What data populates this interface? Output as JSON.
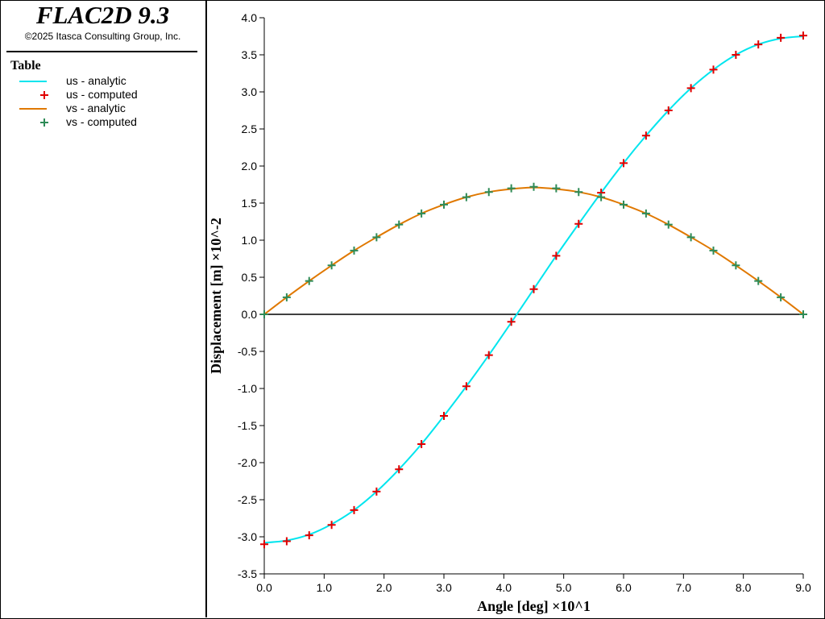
{
  "app": {
    "title": "FLAC2D 9.3",
    "copyright": "©2025 Itasca Consulting Group, Inc."
  },
  "legend": {
    "heading": "Table",
    "entries": [
      {
        "label": "us - analytic",
        "kind": "line",
        "color": "#00e5ee"
      },
      {
        "label": "us - computed",
        "kind": "plus",
        "color": "#e00000"
      },
      {
        "label": "vs - analytic",
        "kind": "line",
        "color": "#e07800"
      },
      {
        "label": "vs - computed",
        "kind": "plus",
        "color": "#2e8b57"
      }
    ]
  },
  "chart_data": {
    "type": "line",
    "xlabel": "Angle [deg] ×10^1",
    "ylabel": "Displacement [m] ×10^-2",
    "xlim": [
      0,
      9
    ],
    "ylim": [
      -3.5,
      4.0
    ],
    "x_ticks": [
      "0.0",
      "1.0",
      "2.0",
      "3.0",
      "4.0",
      "5.0",
      "6.0",
      "7.0",
      "8.0",
      "9.0"
    ],
    "y_ticks": [
      "4.0",
      "3.5",
      "3.0",
      "2.5",
      "2.0",
      "1.5",
      "1.0",
      "0.5",
      "0.0",
      "-0.5",
      "-1.0",
      "-1.5",
      "-2.0",
      "-2.5",
      "-3.0",
      "-3.5"
    ],
    "zero_line": true,
    "grid": false,
    "series": [
      {
        "name": "us - analytic",
        "style": "line",
        "color": "#00e5ee",
        "x": [
          0.0,
          0.375,
          0.75,
          1.125,
          1.5,
          1.875,
          2.25,
          2.625,
          3.0,
          3.375,
          3.75,
          4.125,
          4.5,
          4.875,
          5.25,
          5.625,
          6.0,
          6.375,
          6.75,
          7.125,
          7.5,
          7.875,
          8.25,
          8.625,
          9.0
        ],
        "y": [
          -3.08,
          -3.05,
          -2.97,
          -2.83,
          -2.64,
          -2.39,
          -2.09,
          -1.75,
          -1.37,
          -0.97,
          -0.55,
          -0.11,
          0.34,
          0.79,
          1.22,
          1.64,
          2.04,
          2.41,
          2.75,
          3.05,
          3.3,
          3.5,
          3.64,
          3.72,
          3.75
        ]
      },
      {
        "name": "us - computed",
        "style": "plus",
        "color": "#e00000",
        "x": [
          0.0,
          0.375,
          0.75,
          1.125,
          1.5,
          1.875,
          2.25,
          2.625,
          3.0,
          3.375,
          3.75,
          4.125,
          4.5,
          4.875,
          5.25,
          5.625,
          6.0,
          6.375,
          6.75,
          7.125,
          7.5,
          7.875,
          8.25,
          8.625,
          9.0
        ],
        "y": [
          -3.1,
          -3.06,
          -2.98,
          -2.84,
          -2.64,
          -2.39,
          -2.09,
          -1.75,
          -1.37,
          -0.97,
          -0.55,
          -0.1,
          0.34,
          0.79,
          1.22,
          1.64,
          2.04,
          2.41,
          2.75,
          3.05,
          3.3,
          3.5,
          3.64,
          3.73,
          3.76
        ]
      },
      {
        "name": "vs - analytic",
        "style": "line",
        "color": "#e07800",
        "x": [
          0.0,
          0.375,
          0.75,
          1.125,
          1.5,
          1.875,
          2.25,
          2.625,
          3.0,
          3.375,
          3.75,
          4.125,
          4.5,
          4.875,
          5.25,
          5.625,
          6.0,
          6.375,
          6.75,
          7.125,
          7.5,
          7.875,
          8.25,
          8.625,
          9.0
        ],
        "y": [
          0.0,
          0.23,
          0.45,
          0.66,
          0.86,
          1.04,
          1.21,
          1.36,
          1.48,
          1.58,
          1.65,
          1.69,
          1.71,
          1.69,
          1.65,
          1.58,
          1.48,
          1.36,
          1.21,
          1.04,
          0.86,
          0.66,
          0.45,
          0.23,
          0.0
        ]
      },
      {
        "name": "vs - computed",
        "style": "plus",
        "color": "#2e8b57",
        "x": [
          0.0,
          0.375,
          0.75,
          1.125,
          1.5,
          1.875,
          2.25,
          2.625,
          3.0,
          3.375,
          3.75,
          4.125,
          4.5,
          4.875,
          5.25,
          5.625,
          6.0,
          6.375,
          6.75,
          7.125,
          7.5,
          7.875,
          8.25,
          8.625,
          9.0
        ],
        "y": [
          0.0,
          0.23,
          0.45,
          0.66,
          0.86,
          1.04,
          1.21,
          1.36,
          1.48,
          1.58,
          1.65,
          1.7,
          1.72,
          1.7,
          1.65,
          1.58,
          1.48,
          1.36,
          1.21,
          1.04,
          0.86,
          0.66,
          0.45,
          0.23,
          0.0
        ]
      }
    ]
  }
}
